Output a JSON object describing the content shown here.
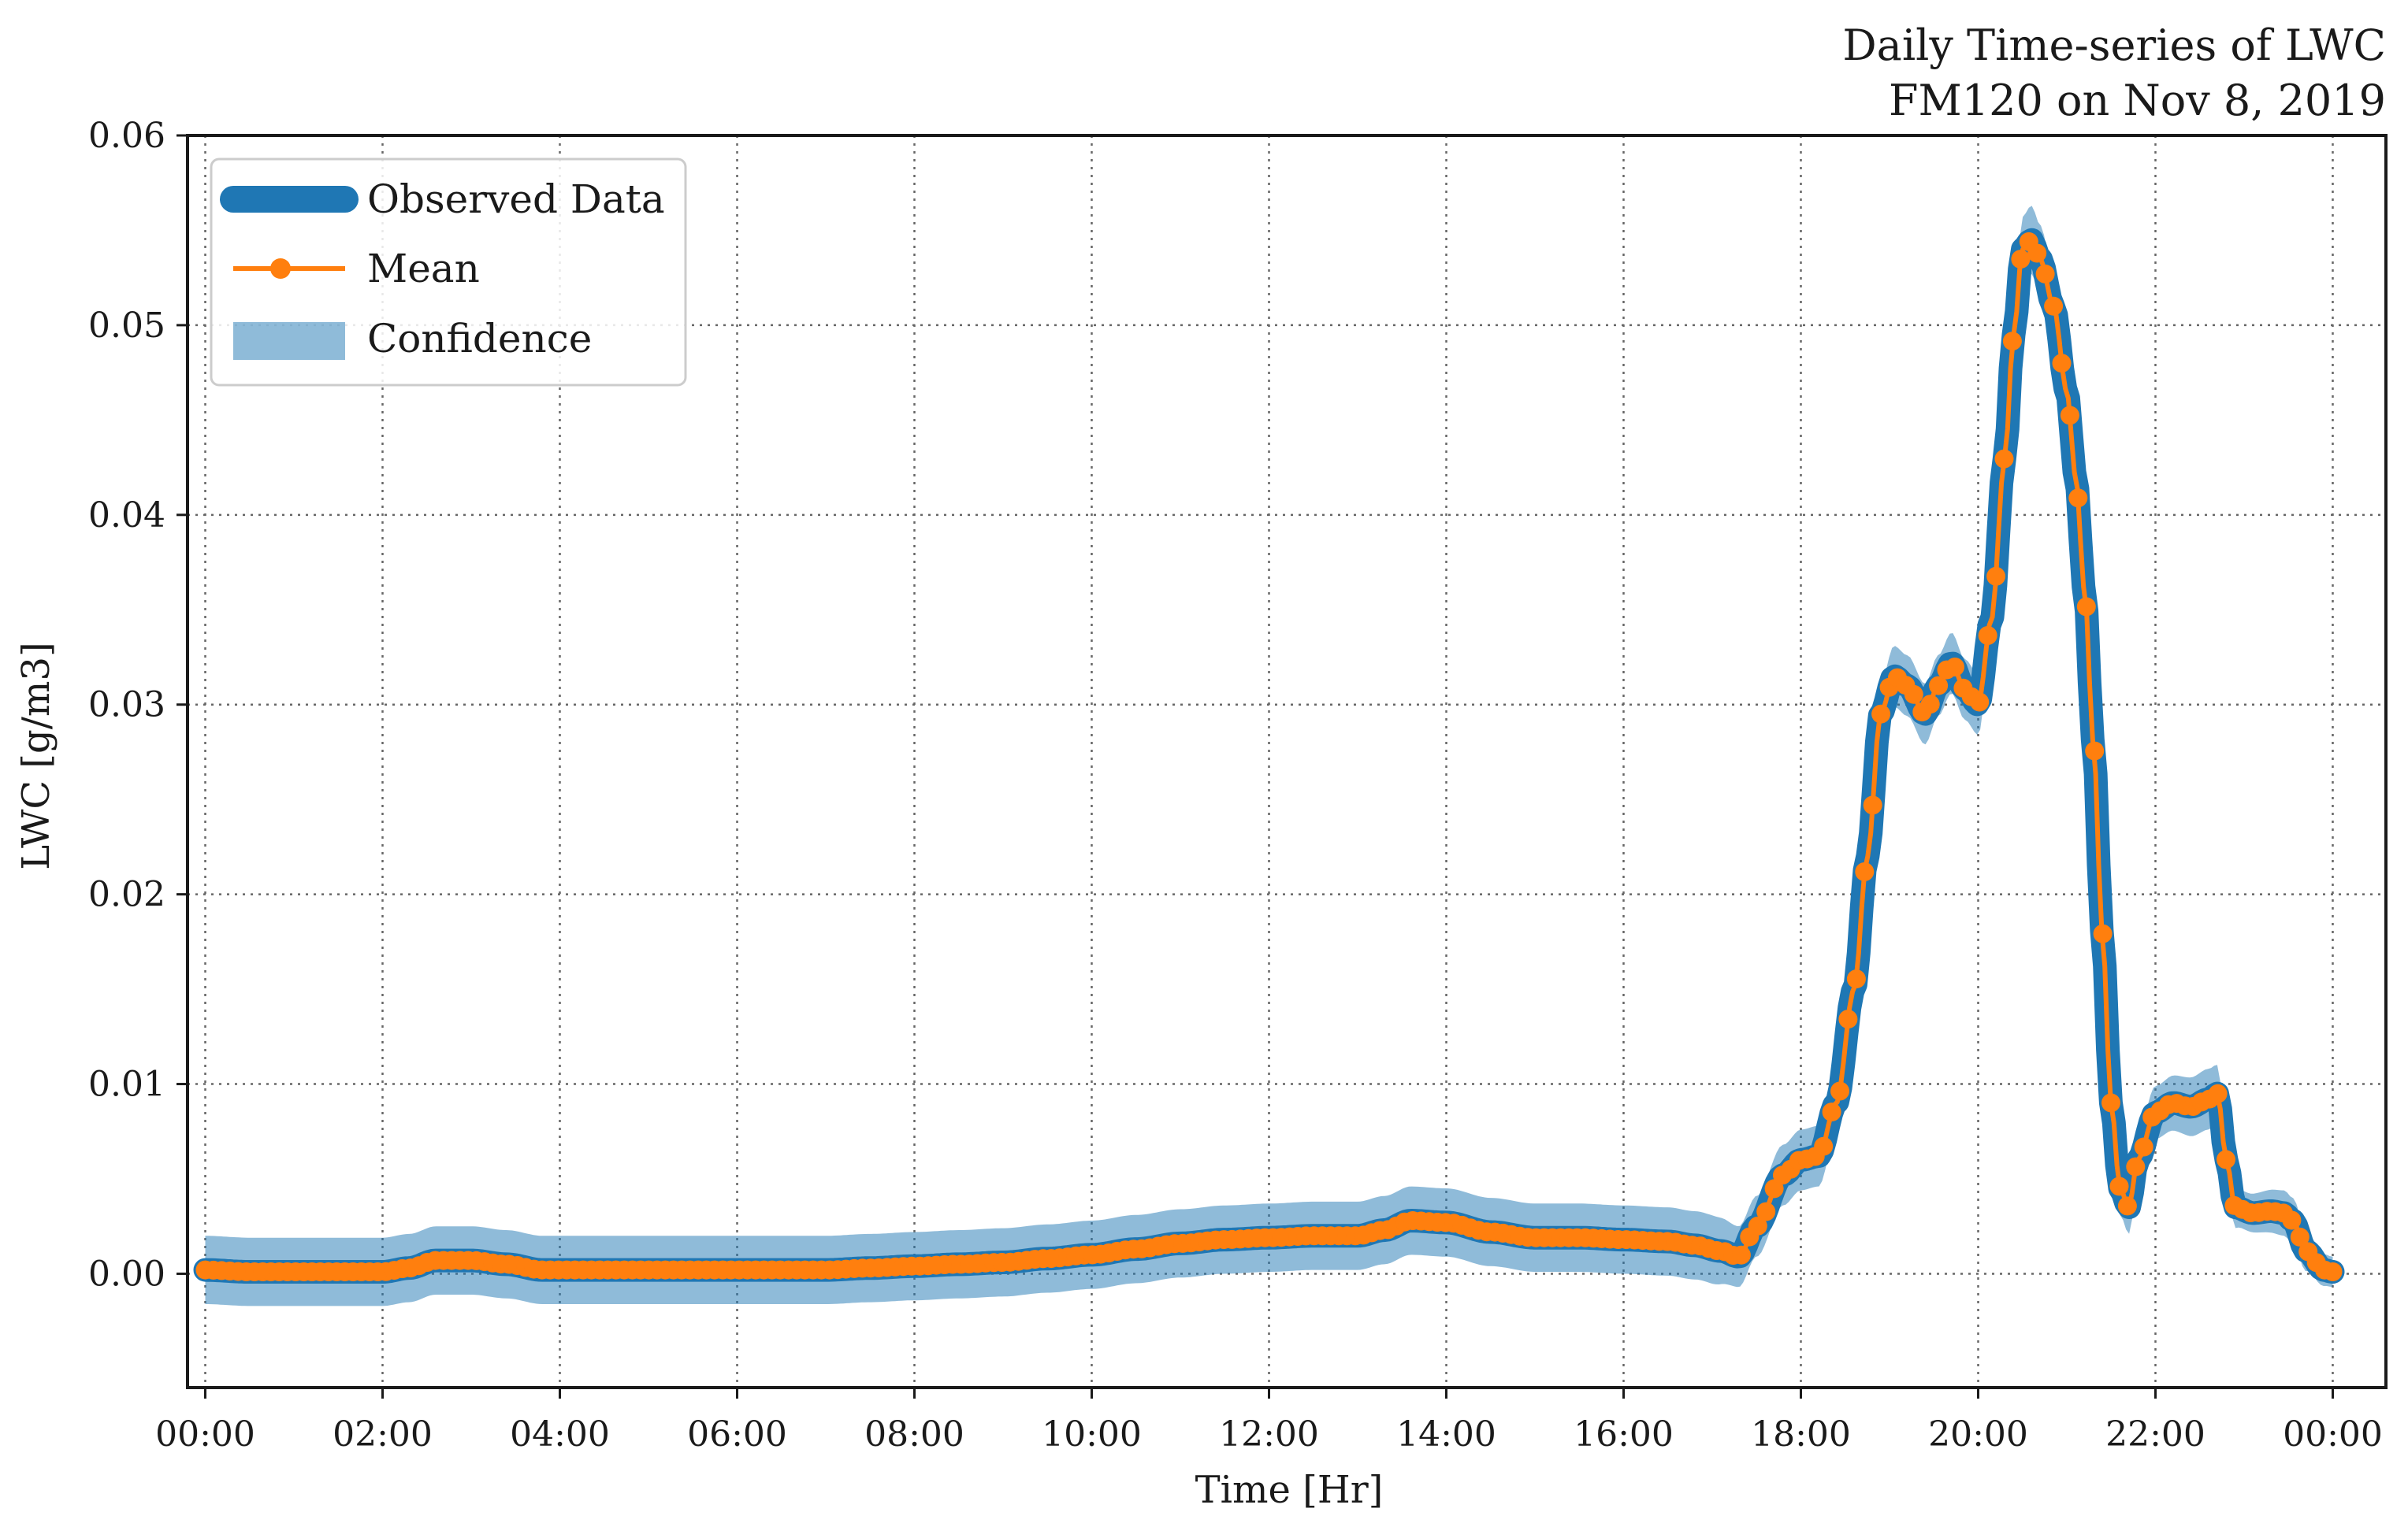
{
  "chart_data": {
    "type": "line",
    "title": [
      "Daily Time-series of LWC",
      "FM120 on Nov 8, 2019"
    ],
    "xlabel": "Time [Hr]",
    "ylabel": "LWC [g/m3]",
    "xlim": [
      -0.2,
      24.6
    ],
    "ylim": [
      -0.006,
      0.06
    ],
    "x_tick_values": [
      0,
      2,
      4,
      6,
      8,
      10,
      12,
      14,
      16,
      18,
      20,
      22,
      24
    ],
    "x_tick_labels": [
      "00:00",
      "02:00",
      "04:00",
      "06:00",
      "08:00",
      "10:00",
      "12:00",
      "14:00",
      "16:00",
      "18:00",
      "20:00",
      "22:00",
      "00:00"
    ],
    "y_tick_values": [
      0.0,
      0.01,
      0.02,
      0.03,
      0.04,
      0.05,
      0.06
    ],
    "y_tick_labels": [
      "0.00",
      "0.01",
      "0.02",
      "0.03",
      "0.04",
      "0.05",
      "0.06"
    ],
    "grid": true,
    "legend_position": "top-left",
    "legend": [
      "Observed Data",
      "Mean",
      "Confidence"
    ],
    "colors": {
      "observed": "#1f77b4",
      "mean": "#ff7f0e",
      "confidence": "#1f77b4"
    },
    "anchors": {
      "x": [
        0,
        0.5,
        1,
        1.5,
        2,
        2.3,
        2.6,
        3.0,
        3.4,
        3.8,
        4,
        5,
        6,
        6.5,
        7,
        7.5,
        8,
        8.5,
        9,
        9.5,
        10,
        10.5,
        11,
        11.5,
        12,
        12.5,
        13,
        13.3,
        13.6,
        14,
        14.5,
        15,
        15.5,
        16,
        16.5,
        16.8,
        17.1,
        17.3,
        17.5,
        17.8,
        18,
        18.2,
        18.4,
        18.6,
        18.75,
        18.9,
        19.05,
        19.2,
        19.4,
        19.55,
        19.7,
        19.85,
        20,
        20.15,
        20.3,
        20.4,
        20.5,
        20.6,
        20.7,
        20.85,
        21,
        21.1,
        21.2,
        21.3,
        21.4,
        21.5,
        21.6,
        21.7,
        21.8,
        22,
        22.2,
        22.4,
        22.6,
        22.7,
        22.8,
        22.9,
        23.1,
        23.3,
        23.45,
        23.55,
        23.7,
        23.9,
        24
      ],
      "y": [
        0.0002,
        0.0001,
        0.0001,
        0.0001,
        0.0001,
        0.0003,
        0.0007,
        0.0007,
        0.0005,
        0.0002,
        0.0002,
        0.0002,
        0.0002,
        0.0002,
        0.0002,
        0.0003,
        0.0004,
        0.0005,
        0.0006,
        0.0008,
        0.001,
        0.0013,
        0.0016,
        0.0018,
        0.0019,
        0.002,
        0.002,
        0.0023,
        0.0028,
        0.0027,
        0.0022,
        0.0019,
        0.0019,
        0.0018,
        0.0017,
        0.0015,
        0.0012,
        0.0009,
        0.0025,
        0.0052,
        0.006,
        0.0062,
        0.009,
        0.015,
        0.022,
        0.0295,
        0.0315,
        0.031,
        0.0295,
        0.031,
        0.0322,
        0.0308,
        0.03,
        0.0345,
        0.043,
        0.0495,
        0.054,
        0.0545,
        0.0535,
        0.051,
        0.0465,
        0.042,
        0.036,
        0.028,
        0.018,
        0.009,
        0.0045,
        0.0035,
        0.006,
        0.0085,
        0.009,
        0.0088,
        0.0092,
        0.0095,
        0.006,
        0.0035,
        0.0032,
        0.0033,
        0.0032,
        0.0028,
        0.0012,
        0.0002,
        0.0001
      ]
    },
    "confidence_halfwidth_anchors": {
      "x": [
        0,
        17.0,
        17.3,
        18.0,
        20.4,
        20.6,
        21.0,
        21.6,
        22.0,
        22.6,
        23.0,
        23.5,
        24
      ],
      "halfwidth": [
        0.0018,
        0.0018,
        0.0016,
        0.0016,
        0.0016,
        0.0018,
        0.0016,
        0.0014,
        0.0014,
        0.0016,
        0.001,
        0.0012,
        0.0008
      ]
    },
    "mean_marker_count": 260
  }
}
